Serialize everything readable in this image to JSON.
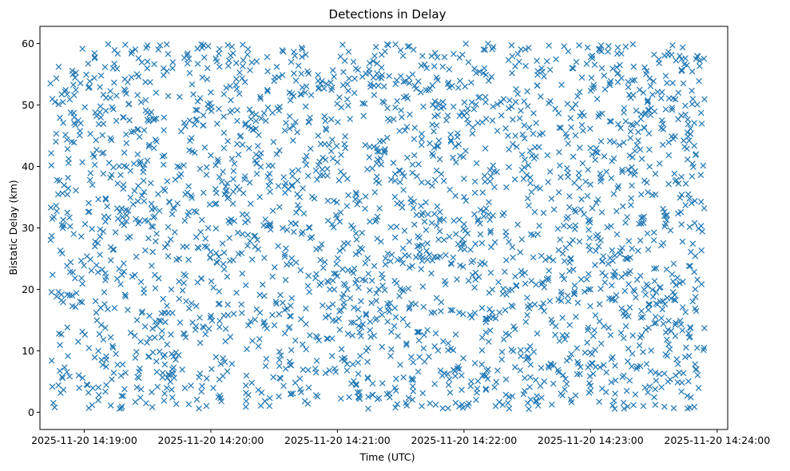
{
  "chart_data": {
    "type": "scatter",
    "title": "Detections in Delay",
    "xlabel": "Time (UTC)",
    "ylabel": "Bistatic Delay (km)",
    "x_range": [
      "2025-11-20 14:18:39",
      "2025-11-20 14:24:05"
    ],
    "ylim": [
      -2.8,
      62.8
    ],
    "x_ticks": [
      "2025-11-20 14:19:00",
      "2025-11-20 14:20:00",
      "2025-11-20 14:21:00",
      "2025-11-20 14:22:00",
      "2025-11-20 14:23:00",
      "2025-11-20 14:24:00"
    ],
    "y_ticks": [
      0,
      10,
      20,
      30,
      40,
      50,
      60
    ],
    "grid": false,
    "legend": "none",
    "marker": "x",
    "color": "#1f77b4",
    "time_span": [
      "2025-11-20 14:18:44",
      "2025-11-20 14:23:54"
    ],
    "value_range": [
      0.5,
      60
    ],
    "approx_point_count": 2600,
    "distribution": "uniform",
    "series": [
      {
        "x": [
          "2025-11-20 14:18:44",
          "2025-11-20 14:18:46",
          "2025-11-20 14:18:48",
          "2025-11-20 14:18:52",
          "2025-11-20 14:18:55",
          "2025-11-20 14:18:58",
          "2025-11-20 14:19:02",
          "2025-11-20 14:19:05",
          "2025-11-20 14:19:10",
          "2025-11-20 14:19:15",
          "2025-11-20 14:19:20",
          "2025-11-20 14:19:25",
          "2025-11-20 14:19:30",
          "2025-11-20 14:19:35",
          "2025-11-20 14:19:40",
          "2025-11-20 14:19:45",
          "2025-11-20 14:19:50",
          "2025-11-20 14:19:55",
          "2025-11-20 14:20:00",
          "2025-11-20 14:20:05",
          "2025-11-20 14:20:10",
          "2025-11-20 14:20:15",
          "2025-11-20 14:20:20",
          "2025-11-20 14:20:25",
          "2025-11-20 14:20:30",
          "2025-11-20 14:20:35",
          "2025-11-20 14:20:40",
          "2025-11-20 14:20:45",
          "2025-11-20 14:20:50",
          "2025-11-20 14:20:55",
          "2025-11-20 14:21:00",
          "2025-11-20 14:21:05",
          "2025-11-20 14:21:10",
          "2025-11-20 14:21:15",
          "2025-11-20 14:21:20",
          "2025-11-20 14:21:25",
          "2025-11-20 14:21:30",
          "2025-11-20 14:21:35",
          "2025-11-20 14:21:40",
          "2025-11-20 14:21:45",
          "2025-11-20 14:21:50",
          "2025-11-20 14:21:55",
          "2025-11-20 14:22:00",
          "2025-11-20 14:22:05",
          "2025-11-20 14:22:10",
          "2025-11-20 14:22:15",
          "2025-11-20 14:22:20",
          "2025-11-20 14:22:25",
          "2025-11-20 14:22:30",
          "2025-11-20 14:22:35",
          "2025-11-20 14:22:40",
          "2025-11-20 14:22:45",
          "2025-11-20 14:22:50",
          "2025-11-20 14:22:55",
          "2025-11-20 14:23:00",
          "2025-11-20 14:23:05",
          "2025-11-20 14:23:10",
          "2025-11-20 14:23:15",
          "2025-11-20 14:23:20",
          "2025-11-20 14:23:25",
          "2025-11-20 14:23:30",
          "2025-11-20 14:23:35",
          "2025-11-20 14:23:40",
          "2025-11-20 14:23:45",
          "2025-11-20 14:23:50",
          "2025-11-20 14:23:54"
        ],
        "y": [
          53.5,
          0.8,
          12.8,
          32.5,
          48.7,
          18.0,
          3.2,
          57.8,
          21.5,
          9.5,
          43.8,
          15.0,
          59.7,
          35.5,
          6.2,
          25.0,
          55.2,
          11.3,
          41.8,
          1.8,
          59.5,
          29.0,
          46.0,
          14.5,
          53.9,
          36.8,
          4.8,
          58.2,
          22.5,
          12.0,
          40.7,
          27.5,
          2.5,
          55.8,
          33.2,
          17.8,
          58.9,
          9.0,
          45.3,
          24.7,
          50.5,
          6.9,
          38.0,
          20.3,
          59.0,
          1.0,
          28.7,
          43.2,
          15.8,
          55.5,
          7.5,
          35.8,
          23.0,
          48.2,
          4.3,
          59.7,
          18.5,
          39.1,
          12.5,
          52.0,
          28.0,
          0.9,
          44.9,
          16.3,
          57.5,
          13.7
        ]
      }
    ]
  }
}
